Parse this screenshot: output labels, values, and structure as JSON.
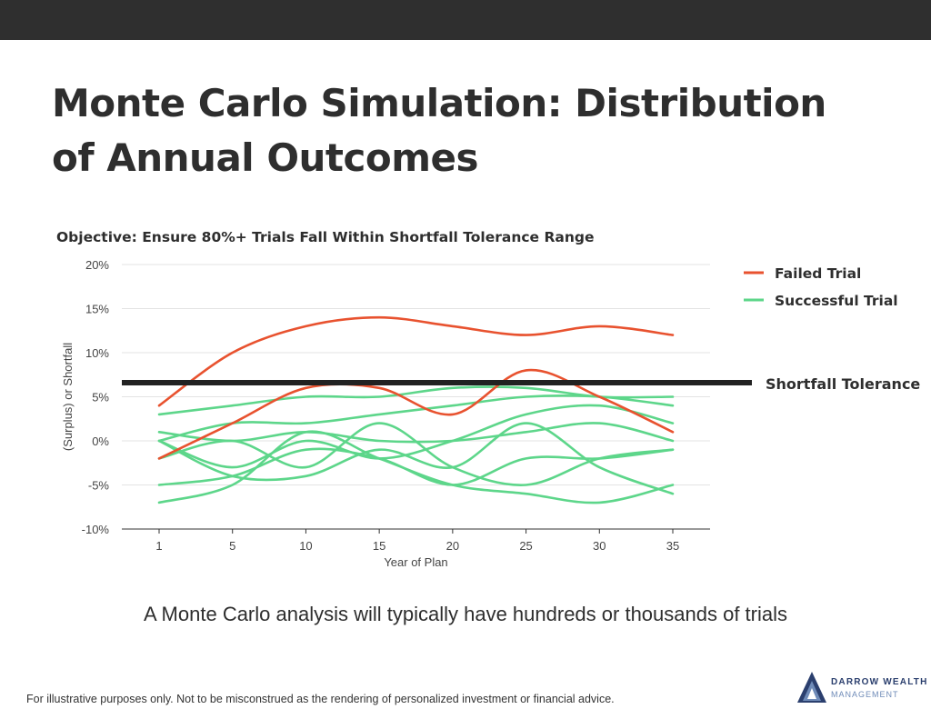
{
  "slide": {
    "title_line1": "Monte Carlo Simulation: Distribution",
    "title_line2": "of Annual Outcomes",
    "caption": "A Monte Carlo analysis will typically have hundreds or thousands of trials",
    "disclaimer": "For illustrative purposes only. Not to be misconstrued as the rendering of personalized investment or financial advice.",
    "logo": {
      "name": "DARROW WEALTH",
      "sub": "MANAGEMENT",
      "icon": "mountain-triangle-icon",
      "colors": [
        "#2b3f6e",
        "#6f8bb8"
      ]
    }
  },
  "chart_data": {
    "type": "line",
    "title": "Objective: Ensure 80%+ Trials Fall Within Shortfall Tolerance Range",
    "xlabel": "Year of Plan",
    "ylabel": "(Surplus) or Shortfall",
    "categories": [
      "1",
      "5",
      "10",
      "15",
      "20",
      "25",
      "30",
      "35"
    ],
    "yticks": [
      "20%",
      "15%",
      "10%",
      "5%",
      "0%",
      "-5%",
      "-10%"
    ],
    "ylim": [
      -10,
      20
    ],
    "grid": true,
    "legend_position": "top-right",
    "threshold": {
      "label": "Shortfall Tolerance",
      "value": 6.6,
      "color": "#222222"
    },
    "series_types": [
      {
        "name": "Failed Trial",
        "color": "#e8522f"
      },
      {
        "name": "Successful Trial",
        "color": "#5dd68a"
      }
    ],
    "series": [
      {
        "type": "Failed Trial",
        "values": [
          4,
          10,
          13,
          14,
          13,
          12,
          13,
          12
        ]
      },
      {
        "type": "Failed Trial",
        "values": [
          -2,
          2,
          6,
          6,
          3,
          8,
          5,
          1
        ]
      },
      {
        "type": "Successful Trial",
        "values": [
          3,
          4,
          5,
          5,
          6,
          6,
          5,
          5
        ]
      },
      {
        "type": "Successful Trial",
        "values": [
          0,
          2,
          2,
          3,
          4,
          5,
          5,
          4
        ]
      },
      {
        "type": "Successful Trial",
        "values": [
          1,
          0,
          1,
          0,
          0,
          1,
          2,
          0
        ]
      },
      {
        "type": "Successful Trial",
        "values": [
          -2,
          0,
          -3,
          2,
          -3,
          -5,
          -2,
          -1
        ]
      },
      {
        "type": "Successful Trial",
        "values": [
          0,
          -3,
          0,
          -2,
          0,
          3,
          4,
          2
        ]
      },
      {
        "type": "Successful Trial",
        "values": [
          0,
          -4,
          -4,
          -1,
          -3,
          2,
          -3,
          -6
        ]
      },
      {
        "type": "Successful Trial",
        "values": [
          -5,
          -4,
          -1,
          -2,
          -5,
          -2,
          -2,
          -1
        ]
      },
      {
        "type": "Successful Trial",
        "values": [
          -7,
          -5,
          1,
          -2,
          -5,
          -6,
          -7,
          -5
        ]
      }
    ]
  }
}
